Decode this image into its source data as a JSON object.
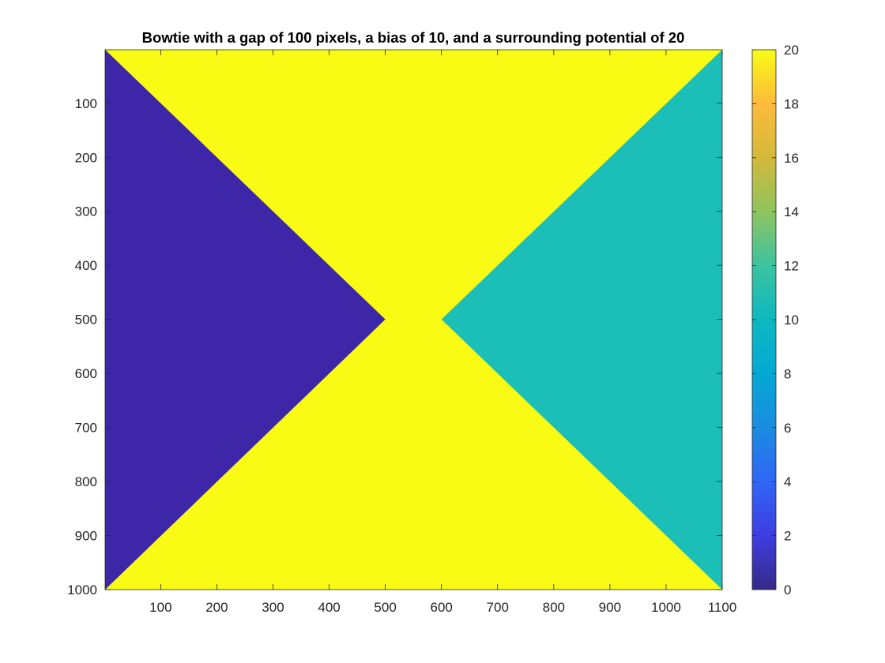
{
  "chart_data": {
    "type": "heatmap",
    "title": "Bowtie with a gap of 100 pixels, a bias of 10, and a surrounding potential of 20",
    "xlabel": "",
    "ylabel": "",
    "xlim": [
      1,
      1100
    ],
    "ylim": [
      1,
      1000
    ],
    "y_direction": "reverse",
    "x_ticks": [
      100,
      200,
      300,
      400,
      500,
      600,
      700,
      800,
      900,
      1000,
      1100
    ],
    "y_ticks": [
      100,
      200,
      300,
      400,
      500,
      600,
      700,
      800,
      900,
      1000
    ],
    "colormap": "parula",
    "clim": [
      0,
      20
    ],
    "colorbar_ticks": [
      0,
      2,
      4,
      6,
      8,
      10,
      12,
      14,
      16,
      18,
      20
    ],
    "regions": [
      {
        "name": "left-electrode",
        "value": 0,
        "color": "#3E26A8",
        "polygon": [
          [
            1,
            1
          ],
          [
            500,
            500
          ],
          [
            1,
            1000
          ]
        ]
      },
      {
        "name": "right-electrode",
        "value": 10,
        "color": "#1BBFB7",
        "polygon": [
          [
            1100,
            1
          ],
          [
            600,
            500
          ],
          [
            1100,
            1000
          ]
        ]
      },
      {
        "name": "surrounding",
        "value": 20,
        "color": "#F9FB15"
      }
    ],
    "grid": false,
    "legend": "colorbar-right"
  }
}
